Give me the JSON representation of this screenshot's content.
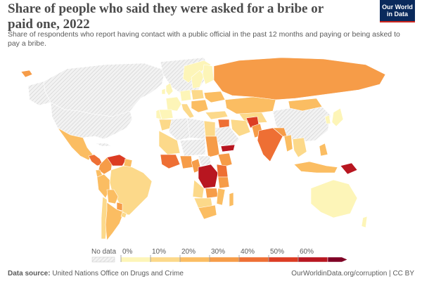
{
  "header": {
    "title": "Share of people who said they were asked for a bribe or paid one, 2022",
    "subtitle": "Share of respondents who report having contact with a public official in the past 12 months and paying or being asked to pay a bribe."
  },
  "logo": {
    "line1": "Our World",
    "line2": "in Data"
  },
  "legend": {
    "no_data_label": "No data",
    "ticks": [
      "0%",
      "10%",
      "20%",
      "30%",
      "40%",
      "50%",
      "60%"
    ],
    "colors": [
      "#fdf5b8",
      "#fcd98a",
      "#fbbd62",
      "#f69c48",
      "#ee6f34",
      "#dc3c23",
      "#b81620",
      "#7f0025"
    ]
  },
  "footer": {
    "source_label": "Data source:",
    "source_text": "United Nations Office on Drugs and Crime",
    "url_text": "OurWorldinData.org/corruption | CC BY"
  },
  "colors": {
    "no_data_fill": "#e9e9e9",
    "border": "#ffffff"
  }
}
